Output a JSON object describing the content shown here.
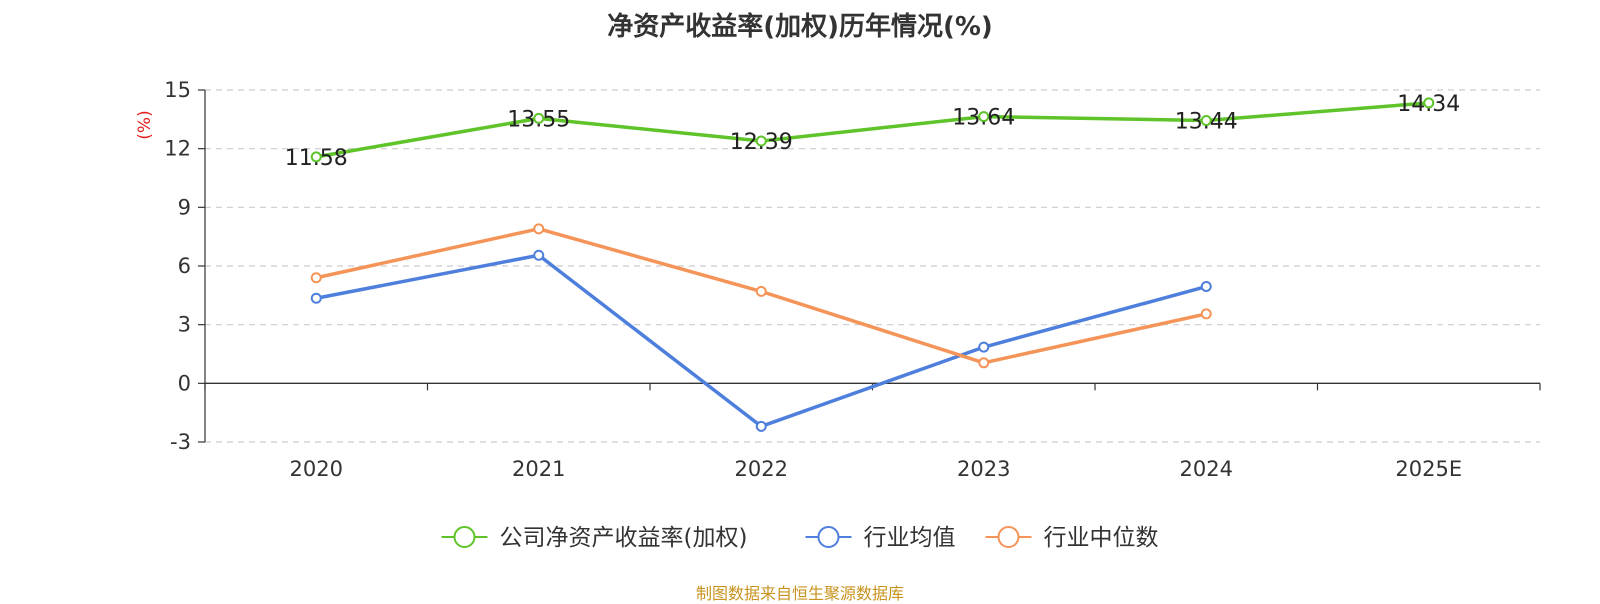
{
  "chart_data": {
    "type": "line",
    "title": "净资产收益率(加权)历年情况(%)",
    "ylabel": "(%)",
    "categories": [
      "2020",
      "2021",
      "2022",
      "2023",
      "2024",
      "2025E"
    ],
    "ylim": [
      -3,
      15
    ],
    "yticks": [
      -3,
      0,
      3,
      6,
      9,
      12,
      15
    ],
    "grid": true,
    "legend_position": "bottom",
    "series": [
      {
        "name": "公司净资产收益率(加权)",
        "color": "#5ec42a",
        "show_labels": true,
        "values": [
          11.58,
          13.55,
          12.39,
          13.64,
          13.44,
          14.34
        ]
      },
      {
        "name": "行业均值",
        "color": "#4e7fdc",
        "show_labels": false,
        "values": [
          4.35,
          6.55,
          -2.2,
          1.85,
          4.95,
          null
        ]
      },
      {
        "name": "行业中位数",
        "color": "#f59458",
        "show_labels": false,
        "values": [
          5.4,
          7.9,
          4.7,
          1.05,
          3.55,
          null
        ]
      }
    ],
    "ylabel_color": "#e02020"
  },
  "footer": {
    "source": "制图数据来自恒生聚源数据库"
  }
}
